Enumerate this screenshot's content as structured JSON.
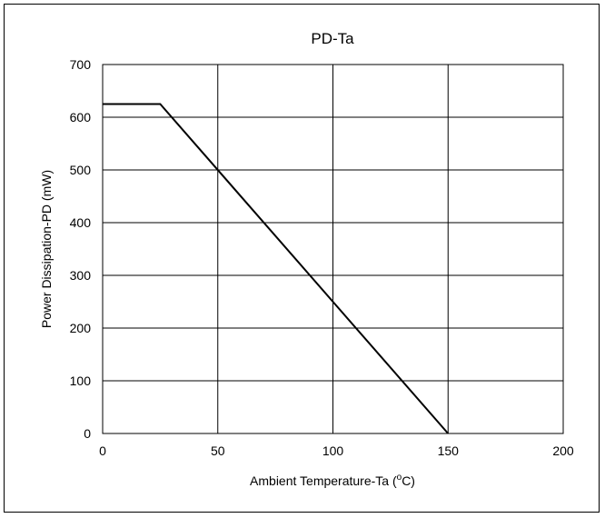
{
  "chart_data": {
    "type": "line",
    "title": "PD-Ta",
    "xlabel": "Ambient Temperature-Ta (",
    "xlabel_unit_sup": "o",
    "xlabel_unit_end": "C)",
    "ylabel": "Power Dissipation-PD (mW)",
    "xlim": [
      0,
      200
    ],
    "ylim": [
      0,
      700
    ],
    "xticks": [
      0,
      50,
      100,
      150,
      200
    ],
    "yticks": [
      0,
      100,
      200,
      300,
      400,
      500,
      600,
      700
    ],
    "grid": true,
    "series": [
      {
        "x": [
          0,
          25,
          150
        ],
        "y": [
          625,
          625,
          0
        ],
        "color": "#000000"
      }
    ]
  }
}
